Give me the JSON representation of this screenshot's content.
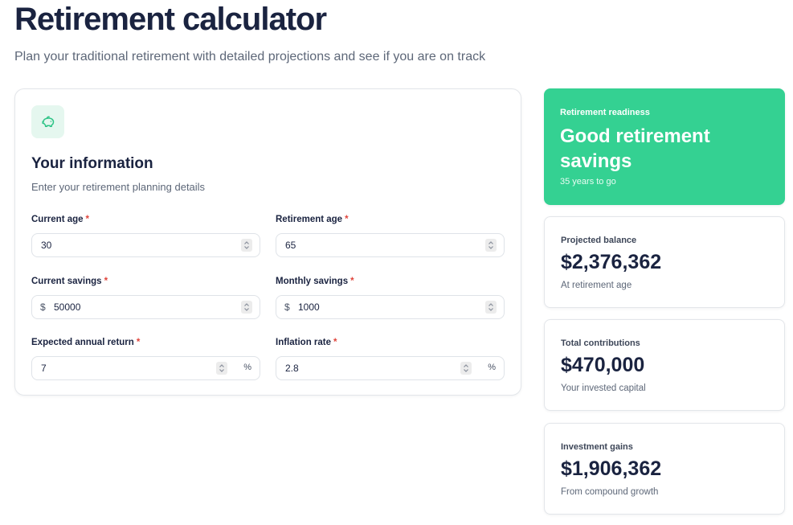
{
  "header": {
    "title": "Retirement calculator",
    "subtitle": "Plan your traditional retirement with detailed projections and see if you are on track"
  },
  "form": {
    "icon": "piggy-bank-icon",
    "title": "Your information",
    "subtitle": "Enter your retirement planning details",
    "required_mark": "*",
    "fields": {
      "current_age": {
        "label": "Current age",
        "value": "30"
      },
      "retirement_age": {
        "label": "Retirement age",
        "value": "65"
      },
      "current_savings": {
        "label": "Current savings",
        "prefix": "$",
        "value": "50000"
      },
      "monthly_savings": {
        "label": "Monthly savings",
        "prefix": "$",
        "value": "1000"
      },
      "expected_return": {
        "label": "Expected annual return",
        "value": "7",
        "suffix": "%"
      },
      "inflation_rate": {
        "label": "Inflation rate",
        "value": "2.8",
        "suffix": "%"
      }
    }
  },
  "readiness": {
    "label": "Retirement readiness",
    "title": "Good retirement savings",
    "subtitle": "35 years to go",
    "color": "#34d192"
  },
  "stats": {
    "projected": {
      "label": "Projected balance",
      "value": "$2,376,362",
      "subtitle": "At retirement age"
    },
    "contributions": {
      "label": "Total contributions",
      "value": "$470,000",
      "subtitle": "Your invested capital"
    },
    "gains": {
      "label": "Investment gains",
      "value": "$1,906,362",
      "subtitle": "From compound growth"
    }
  },
  "colors": {
    "accent": "#34d192",
    "text": "#1a2340",
    "required": "#e0453c"
  }
}
